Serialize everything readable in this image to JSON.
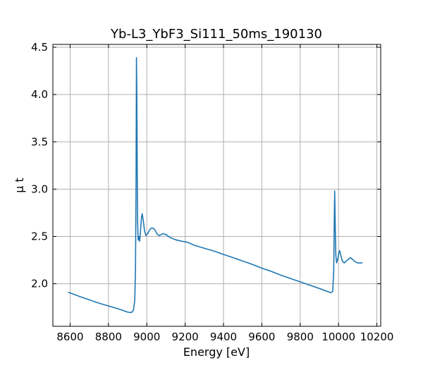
{
  "chart_data": {
    "type": "line",
    "title": "Yb-L3_YbF3_Si111_50ms_190130",
    "xlabel": "Energy [eV]",
    "ylabel": "μ t",
    "xlim": [
      8510,
      10220
    ],
    "ylim": [
      1.55,
      4.53
    ],
    "grid": true,
    "xticks": [
      8600,
      8800,
      9000,
      9200,
      9400,
      9600,
      9800,
      10000,
      10200
    ],
    "xtick_labels": [
      "8600",
      "8800",
      "9000",
      "9200",
      "9400",
      "9600",
      "9800",
      "10000",
      "10200"
    ],
    "yticks": [
      2.0,
      2.5,
      3.0,
      3.5,
      4.0,
      4.5
    ],
    "ytick_labels": [
      "2.0",
      "2.5",
      "3.0",
      "3.5",
      "4.0",
      "4.5"
    ],
    "series": [
      {
        "color": "#1f77b4",
        "points": [
          [
            8590,
            1.91
          ],
          [
            8650,
            1.865
          ],
          [
            8700,
            1.83
          ],
          [
            8750,
            1.795
          ],
          [
            8800,
            1.765
          ],
          [
            8850,
            1.735
          ],
          [
            8880,
            1.715
          ],
          [
            8900,
            1.7
          ],
          [
            8920,
            1.695
          ],
          [
            8930,
            1.72
          ],
          [
            8937,
            1.82
          ],
          [
            8941,
            2.15
          ],
          [
            8944,
            3.1
          ],
          [
            8946,
            4.39
          ],
          [
            8948,
            4.0
          ],
          [
            8950,
            3.2
          ],
          [
            8952,
            2.65
          ],
          [
            8955,
            2.46
          ],
          [
            8959,
            2.5
          ],
          [
            8963,
            2.45
          ],
          [
            8967,
            2.55
          ],
          [
            8972,
            2.7
          ],
          [
            8976,
            2.74
          ],
          [
            8982,
            2.66
          ],
          [
            8988,
            2.56
          ],
          [
            8995,
            2.51
          ],
          [
            9005,
            2.53
          ],
          [
            9015,
            2.57
          ],
          [
            9025,
            2.59
          ],
          [
            9035,
            2.585
          ],
          [
            9045,
            2.56
          ],
          [
            9055,
            2.52
          ],
          [
            9065,
            2.51
          ],
          [
            9075,
            2.52
          ],
          [
            9085,
            2.53
          ],
          [
            9100,
            2.52
          ],
          [
            9120,
            2.49
          ],
          [
            9150,
            2.465
          ],
          [
            9180,
            2.45
          ],
          [
            9210,
            2.44
          ],
          [
            9250,
            2.405
          ],
          [
            9300,
            2.375
          ],
          [
            9350,
            2.345
          ],
          [
            9400,
            2.31
          ],
          [
            9450,
            2.275
          ],
          [
            9500,
            2.24
          ],
          [
            9550,
            2.205
          ],
          [
            9600,
            2.165
          ],
          [
            9650,
            2.13
          ],
          [
            9700,
            2.09
          ],
          [
            9750,
            2.055
          ],
          [
            9800,
            2.02
          ],
          [
            9850,
            1.985
          ],
          [
            9900,
            1.95
          ],
          [
            9940,
            1.92
          ],
          [
            9960,
            1.905
          ],
          [
            9970,
            1.92
          ],
          [
            9975,
            2.15
          ],
          [
            9978,
            2.7
          ],
          [
            9980,
            2.98
          ],
          [
            9983,
            2.6
          ],
          [
            9986,
            2.3
          ],
          [
            9990,
            2.22
          ],
          [
            9996,
            2.26
          ],
          [
            10002,
            2.33
          ],
          [
            10006,
            2.35
          ],
          [
            10012,
            2.3
          ],
          [
            10020,
            2.24
          ],
          [
            10030,
            2.22
          ],
          [
            10040,
            2.24
          ],
          [
            10052,
            2.26
          ],
          [
            10062,
            2.275
          ],
          [
            10072,
            2.26
          ],
          [
            10085,
            2.235
          ],
          [
            10100,
            2.22
          ],
          [
            10115,
            2.22
          ],
          [
            10125,
            2.222
          ]
        ]
      }
    ]
  }
}
